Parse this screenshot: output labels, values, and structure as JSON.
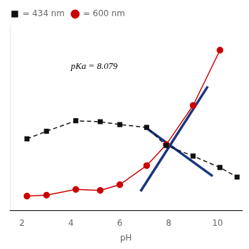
{
  "chart_data": {
    "type": "line",
    "xlabel": "pH",
    "xlim": [
      1.5,
      11.0
    ],
    "xticks": [
      2,
      4,
      6,
      8,
      10
    ],
    "ylim": [
      -0.02,
      0.95
    ],
    "tick_labels": "x",
    "grid": false,
    "legend": "upper left",
    "series": [
      {
        "name": "= 434 nm",
        "color": "#111111",
        "marker": "square",
        "line_style": "dashed",
        "x": [
          2.2,
          3.0,
          4.2,
          5.2,
          6.0,
          7.1,
          7.9,
          9.0,
          10.1,
          10.8
        ],
        "values": [
          0.355,
          0.395,
          0.45,
          0.445,
          0.43,
          0.415,
          0.32,
          0.265,
          0.205,
          0.155
        ]
      },
      {
        "name": "= 600 nm",
        "color": "#cc0000",
        "marker": "circle",
        "line_style": "solid",
        "x": [
          2.2,
          3.0,
          4.2,
          5.2,
          6.0,
          7.1,
          7.9,
          9.0,
          10.1
        ],
        "values": [
          0.055,
          0.06,
          0.09,
          0.085,
          0.115,
          0.215,
          0.325,
          0.53,
          0.82
        ]
      },
      {
        "color": "#1a3580",
        "line_style": "solid",
        "x": [
          7.0,
          9.8
        ],
        "values": [
          0.42,
          0.16
        ]
      },
      {
        "color": "#1a3580",
        "line_style": "solid",
        "x": [
          6.85,
          9.6
        ],
        "values": [
          0.08,
          0.63
        ]
      }
    ],
    "annotations": [
      {
        "text": "pKa = 8.079",
        "x": 4.0,
        "y": 0.72
      }
    ]
  }
}
